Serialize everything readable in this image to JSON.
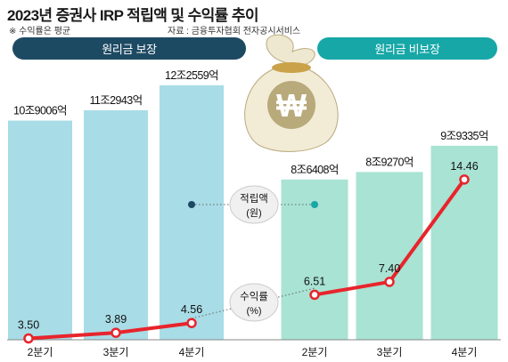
{
  "title": "2023년 증권사 IRP 적립액 및 수익률 추이",
  "note": "※ 수익률은 평균",
  "source": "자료 : 금융투자협회 전자공시서비스",
  "icon": "money-bag-icon",
  "colors": {
    "guaranteed_banner": "#1d4a63",
    "nonguaranteed_banner": "#17a7a7",
    "guaranteed_bar": "#a8dce6",
    "nonguaranteed_bar": "#a8e3d3",
    "return_line": "#e8242c"
  },
  "chart_data": [
    {
      "type": "bar",
      "title": "원리금 보장",
      "categories": [
        "2분기",
        "3분기",
        "4분기"
      ],
      "series": [
        {
          "name": "적립액 (원)",
          "values": [
            "10조9006억",
            "11조2943억",
            "12조2559억"
          ],
          "values_억": [
            109006,
            112943,
            122559
          ]
        }
      ],
      "line_series": {
        "name": "수익률 (%)",
        "values": [
          3.5,
          3.89,
          4.56
        ]
      }
    },
    {
      "type": "bar",
      "title": "원리금 비보장",
      "categories": [
        "2분기",
        "3분기",
        "4분기"
      ],
      "series": [
        {
          "name": "적립액 (원)",
          "values": [
            "8조6408억",
            "8조9270억",
            "9조9335억"
          ],
          "values_억": [
            86408,
            89270,
            99335
          ]
        }
      ],
      "line_series": {
        "name": "수익률 (%)",
        "values": [
          6.51,
          7.4,
          14.46
        ]
      }
    }
  ],
  "legend": {
    "amount_label": "적립액",
    "amount_unit": "(원)",
    "return_label": "수익률",
    "return_unit": "(%)"
  }
}
